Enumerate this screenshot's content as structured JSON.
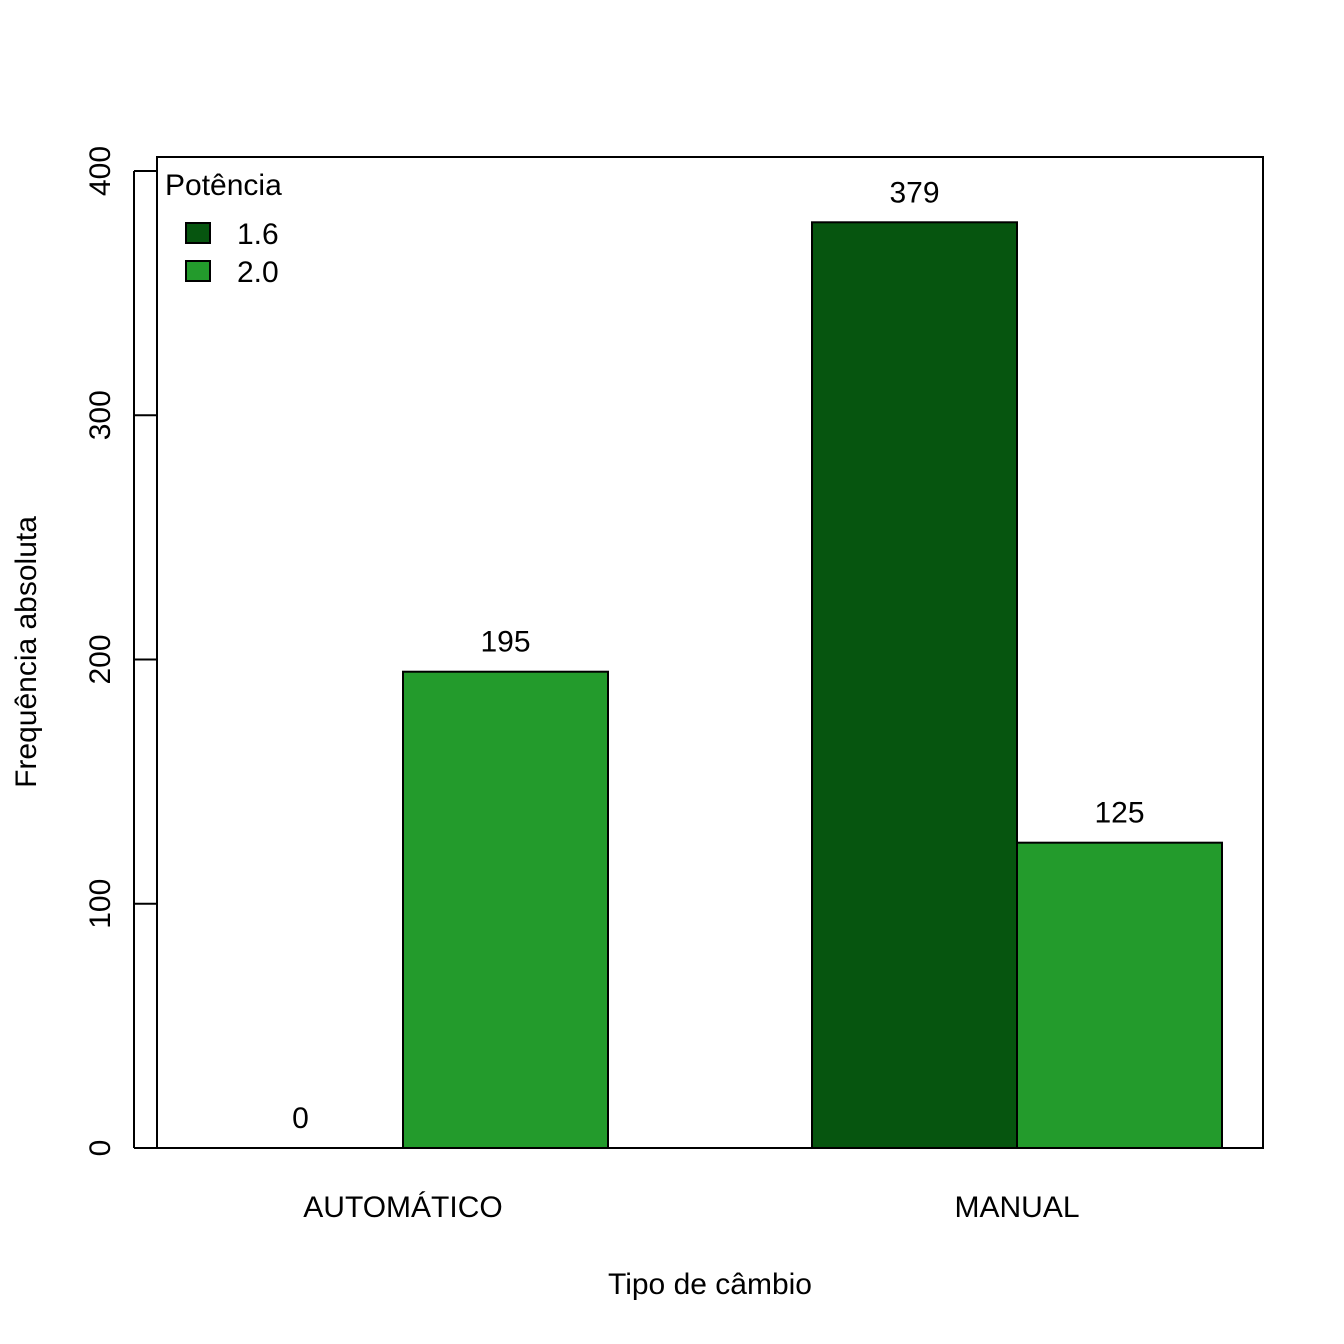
{
  "chart_data": {
    "type": "bar",
    "categories": [
      "AUTOMÁTICO",
      "MANUAL"
    ],
    "series": [
      {
        "name": "1.6",
        "values": [
          0,
          379
        ],
        "color": "#06550F"
      },
      {
        "name": "2.0",
        "values": [
          195,
          125
        ],
        "color": "#239B2C"
      }
    ],
    "xlabel": "Tipo de câmbio",
    "ylabel": "Frequência absoluta",
    "ylim": [
      0,
      400
    ],
    "yticks": [
      0,
      100,
      200,
      300,
      400
    ],
    "legend": {
      "title": "Potência",
      "position": "top-left"
    },
    "grid": false
  }
}
